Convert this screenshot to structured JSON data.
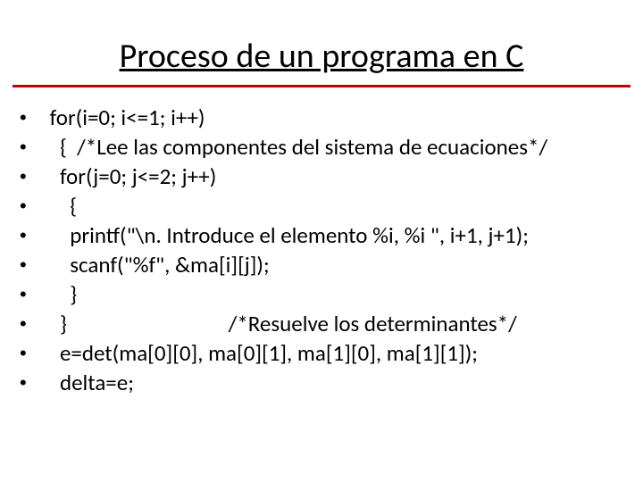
{
  "title": "Proceso de un programa en C",
  "colors": {
    "background": "#ffffff",
    "text": "#000000",
    "rule": "#c00000"
  },
  "typography": {
    "title_fontsize": 38,
    "body_fontsize": 25,
    "line_height": 33,
    "font_family": "Calibri, Arial, sans-serif"
  },
  "lines": [
    " for(i=0; i<=1; i++)",
    "   {  /*Lee las componentes del sistema de ecuaciones*/",
    "   for(j=0; j<=2; j++)",
    "     {",
    "     printf(\"\\n. Introduce el elemento %i, %i \", i+1, j+1);",
    "     scanf(\"%f\", &ma[i][j]);",
    "     }",
    "   }                                /*Resuelve los determinantes*/",
    "   e=det(ma[0][0], ma[0][1], ma[1][0], ma[1][1]);",
    "   delta=e;"
  ],
  "bullet_char": "•"
}
